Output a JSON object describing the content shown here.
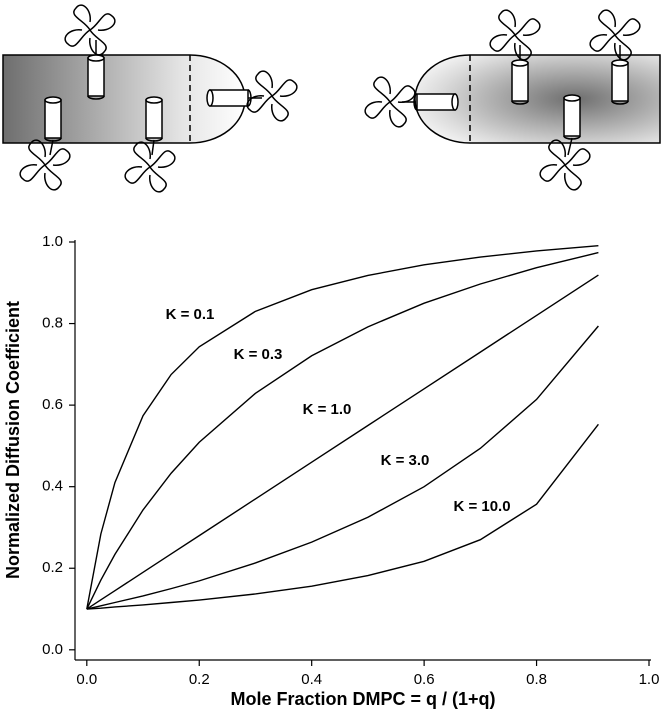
{
  "chart_data": {
    "type": "line",
    "x": [
      0,
      0.025,
      0.05,
      0.1,
      0.15,
      0.2,
      0.3,
      0.4,
      0.5,
      0.6,
      0.7,
      0.8,
      0.91
    ],
    "series": [
      {
        "name": "K = 0.1",
        "color": "#000000",
        "values": [
          0.1,
          0.284,
          0.41,
          0.574,
          0.675,
          0.743,
          0.83,
          0.883,
          0.918,
          0.944,
          0.963,
          0.978,
          0.991
        ]
      },
      {
        "name": "K = 0.3",
        "color": "#000000",
        "values": [
          0.1,
          0.171,
          0.234,
          0.343,
          0.433,
          0.509,
          0.629,
          0.721,
          0.792,
          0.85,
          0.897,
          0.937,
          0.974
        ]
      },
      {
        "name": "K = 1.0",
        "color": "#000000",
        "values": [
          0.1,
          0.1225,
          0.145,
          0.19,
          0.235,
          0.28,
          0.37,
          0.46,
          0.55,
          0.64,
          0.73,
          0.82,
          0.919
        ]
      },
      {
        "name": "K = 3.0",
        "color": "#000000",
        "values": [
          0.1,
          0.108,
          0.116,
          0.132,
          0.15,
          0.169,
          0.213,
          0.264,
          0.325,
          0.4,
          0.494,
          0.614,
          0.794
        ]
      },
      {
        "name": "K = 10.0",
        "color": "#000000",
        "values": [
          0.1,
          0.102,
          0.105,
          0.11,
          0.116,
          0.122,
          0.137,
          0.156,
          0.182,
          0.217,
          0.27,
          0.357,
          0.553
        ]
      }
    ],
    "x_label": "Mole Fraction DMPC = q / (1+q)",
    "y_label": "Normalized Diffusion Coefficient",
    "xlim": [
      -0.021,
      1.0
    ],
    "ylim": [
      -0.025,
      1.0
    ],
    "xticks": [
      {
        "value": 0,
        "label": "0.0"
      },
      0.2,
      0.4,
      0.6,
      0.8,
      {
        "value": 1,
        "label": "1.0"
      }
    ],
    "yticks": [
      {
        "value": 0,
        "label": "0.0"
      },
      0.2,
      0.4,
      0.6,
      0.8,
      {
        "value": 1,
        "label": "1.0"
      }
    ]
  }
}
